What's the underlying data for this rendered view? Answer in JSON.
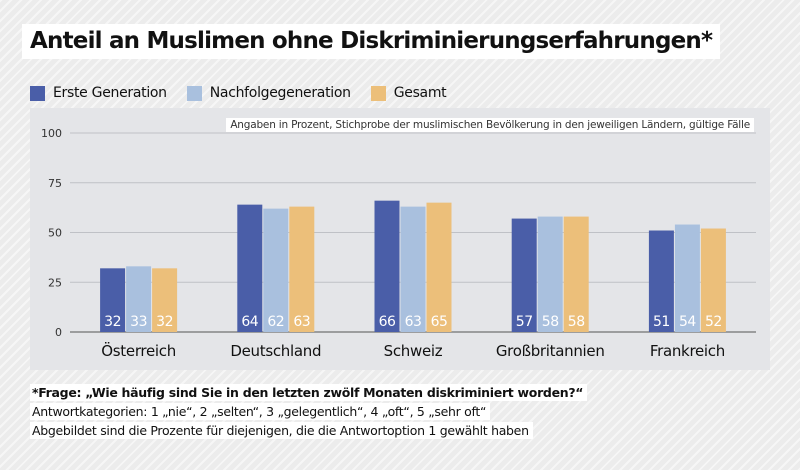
{
  "title": "Anteil an Muslimen ohne Diskriminierungserfahrungen*",
  "legend": [
    {
      "label": "Erste Generation",
      "color": "#4a5ea8"
    },
    {
      "label": "Nachfolgegeneration",
      "color": "#a9c0de"
    },
    {
      "label": "Gesamt",
      "color": "#ecbf7a"
    }
  ],
  "chart_data": {
    "type": "bar",
    "title": "Anteil an Muslimen ohne Diskriminierungserfahrungen*",
    "note": "Angaben in Prozent, Stichprobe der muslimischen Bevölkerung in den jeweiligen Ländern, gültige Fälle",
    "categories": [
      "Österreich",
      "Deutschland",
      "Schweiz",
      "Großbritannien",
      "Frankreich"
    ],
    "series": [
      {
        "name": "Erste Generation",
        "values": [
          32,
          64,
          66,
          57,
          51
        ],
        "color": "#4a5ea8"
      },
      {
        "name": "Nachfolgegeneration",
        "values": [
          33,
          62,
          63,
          58,
          54
        ],
        "color": "#a9c0de"
      },
      {
        "name": "Gesamt",
        "values": [
          32,
          63,
          65,
          58,
          52
        ],
        "color": "#ecbf7a"
      }
    ],
    "ylim": [
      0,
      100
    ],
    "yticks": [
      0,
      25,
      50,
      75,
      100
    ],
    "xlabel": "",
    "ylabel": "",
    "grid": true,
    "legend_position": "top-left"
  },
  "footnotes": {
    "question": "*Frage: „Wie häufig sind Sie in den letzten zwölf Monaten diskriminiert worden?“",
    "categories": "Antwortkategorien: 1 „nie“, 2 „selten“, 3 „gelegentlich“, 4 „oft“, 5 „sehr oft“",
    "shown": "Abgebildet sind die Prozente für diejenigen, die die Antwortoption 1 gewählt haben"
  }
}
